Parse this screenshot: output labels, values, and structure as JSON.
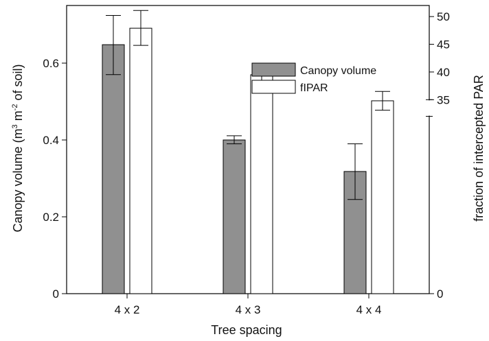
{
  "chart_data": {
    "type": "bar",
    "categories": [
      "4 x 2",
      "4 x 3",
      "4 x 4"
    ],
    "xlabel": "Tree spacing",
    "ylabel_left_parts": [
      "Canopy volume (m",
      "3",
      " m",
      "-2",
      " of soil)"
    ],
    "ylabel_right": "fraction of intercepted PAR",
    "left_axis": {
      "ylim": [
        0,
        0.75
      ],
      "ticks": [
        0,
        0.2,
        0.4,
        0.6
      ],
      "tick_labels": [
        "0",
        "0.2",
        "0.4",
        "0.6"
      ]
    },
    "right_axis": {
      "ylim": [
        0,
        52
      ],
      "ticks": [
        0,
        35,
        40,
        45,
        50
      ],
      "tick_labels": [
        "0",
        "35",
        "40",
        "45",
        "50"
      ],
      "axis_break": [
        32,
        35
      ]
    },
    "series": [
      {
        "name": "Canopy volume",
        "axis": "left",
        "color": "#909090",
        "values": [
          0.648,
          0.4,
          0.318
        ],
        "error_low": [
          0.57,
          0.39,
          0.245
        ],
        "error_high": [
          0.724,
          0.411,
          0.39
        ]
      },
      {
        "name": "fIPAR",
        "axis": "right",
        "color": "#ffffff",
        "values": [
          47.9,
          39.5,
          34.8
        ],
        "error_low": [
          44.8,
          37.0,
          33.1
        ],
        "error_high": [
          51.1,
          41.0,
          36.5
        ]
      }
    ],
    "legend": {
      "position": "top-right",
      "entries": [
        "Canopy volume",
        "fIPAR"
      ]
    },
    "grid": false
  }
}
